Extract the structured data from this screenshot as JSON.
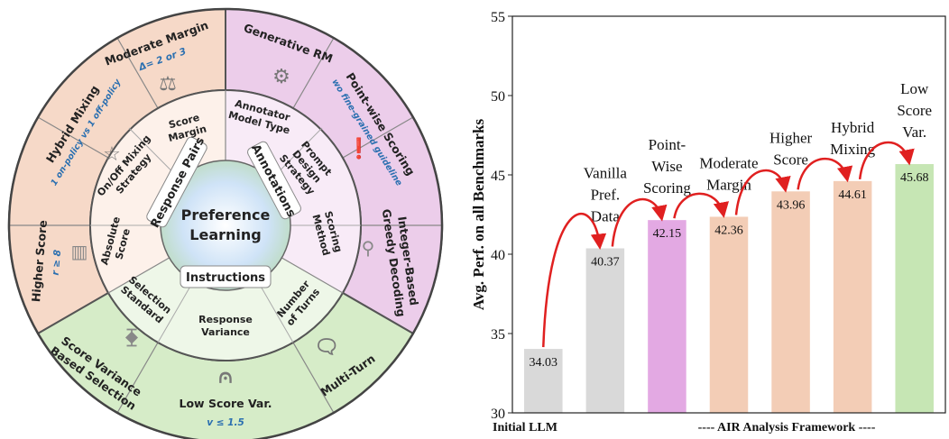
{
  "wheel": {
    "center_line1": "Preference",
    "center_line2": "Learning",
    "categories": {
      "response_pairs": "Response Pairs",
      "annotations": "Annotations",
      "instructions": "Instructions"
    },
    "inner": {
      "score_margin": [
        "Score",
        "Margin"
      ],
      "on_off_mixing": [
        "On/Off Mixing",
        "Strategy"
      ],
      "absolute_score": [
        "Absolute",
        "Score"
      ],
      "annotator_model": [
        "Annotator",
        "Model Type"
      ],
      "prompt_design": [
        "Prompt",
        "Design",
        "Strategy"
      ],
      "scoring_method": [
        "Scoring",
        "Method"
      ],
      "selection_standard": [
        "Selection",
        "Standard"
      ],
      "response_variance": [
        "Response",
        "Variance"
      ],
      "number_of_turns": [
        "Number",
        "of Turns"
      ]
    },
    "outer": {
      "moderate_margin": "Moderate Margin",
      "moderate_margin_sub": "Δ= 2 or 3",
      "hybrid_mixing": "Hybrid Mixing",
      "hybrid_mixing_sub": "1 on-policy vs 1 off-policy",
      "higher_score": "Higher Score",
      "higher_score_sub": "r ≥ 8",
      "generative_rm": "Generative RM",
      "pointwise_scoring": "Point-wise Scoring",
      "pointwise_scoring_sub": "wo fine-grained guideline",
      "integer_based": [
        "Integer-Based",
        "Greedy Decoding"
      ],
      "score_variance": [
        "Score Variance",
        "Based Selection"
      ],
      "low_score_var": "Low Score Var.",
      "low_score_var_sub": "v ≤ 1.5",
      "multi_turn": "Multi-Turn"
    },
    "colors": {
      "response": "#f6d9c8",
      "annotation": "#eccdea",
      "instruction": "#d6ecc8",
      "response_label": "#a0522d",
      "annotation_label": "#8e2a8e",
      "instruction_label": "#2e7d32"
    }
  },
  "chart_data": {
    "type": "bar",
    "categories": [
      "Initial LLM",
      "Vanilla Pref. Data",
      "Point-Wise Scoring",
      "Moderate Margin",
      "Higher Score",
      "Hybrid Mixing",
      "Low Score Var."
    ],
    "bar_labels": [
      [],
      [
        "Vanilla",
        "Pref.",
        "Data"
      ],
      [
        "Point-",
        "Wise",
        "Scoring"
      ],
      [
        "Moderate",
        "Margin"
      ],
      [
        "Higher",
        "Score"
      ],
      [
        "Hybrid",
        "Mixing"
      ],
      [
        "Low",
        "Score",
        "Var."
      ]
    ],
    "values": [
      34.03,
      40.37,
      42.15,
      42.36,
      43.96,
      44.61,
      45.68
    ],
    "value_labels": [
      "34.03",
      "40.37",
      "42.15",
      "42.36",
      "43.96",
      "44.61",
      "45.68"
    ],
    "colors": [
      "#d9d9d9",
      "#d9d9d9",
      "#e3a9e3",
      "#f3cdb6",
      "#f3cdb6",
      "#f3cdb6",
      "#c6e6b4"
    ],
    "ylabel": "Avg. Perf. on all Benchmarks",
    "ylim": [
      30,
      55
    ],
    "yticks": [
      "30",
      "35",
      "40",
      "45",
      "50",
      "55"
    ],
    "x_caption_left": "Initial LLM",
    "x_caption_right": "---- AIR Analysis Framework ----",
    "arrow_color": "#e02020"
  }
}
